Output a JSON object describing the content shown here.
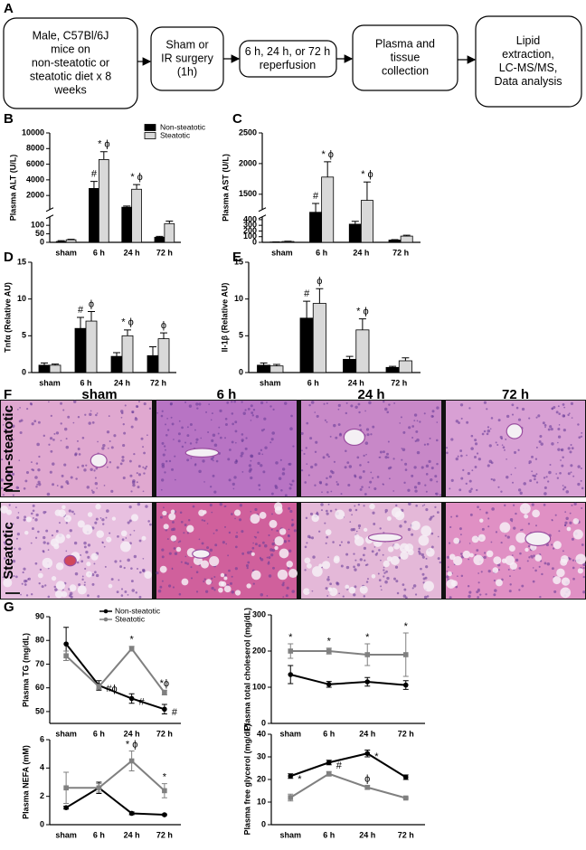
{
  "flow": {
    "panel": "A",
    "boxes": [
      {
        "lines": [
          "Male, C57Bl/6J",
          "mice on",
          "non-steatotic or",
          "steatotic diet x 8",
          "weeks"
        ]
      },
      {
        "lines": [
          "Sham or",
          "IR surgery",
          "(1h)"
        ]
      },
      {
        "lines": [
          "6 h, 24 h, or 72 h",
          "reperfusion"
        ]
      },
      {
        "lines": [
          "Plasma and",
          "tissue",
          "collection"
        ]
      },
      {
        "lines": [
          "Lipid",
          "extraction,",
          "LC-MS/MS,",
          "Data analysis"
        ]
      }
    ]
  },
  "chart_data": [
    {
      "type": "bar",
      "panel": "B",
      "ylabel": "Plasma ALT (U/L)",
      "categories": [
        "sham",
        "6 h",
        "24 h",
        "72 h"
      ],
      "ylim": [
        0,
        10000
      ],
      "y_segments": [
        [
          0,
          150
        ],
        [
          200,
          10000
        ]
      ],
      "yticks": [
        0,
        50,
        100,
        2000,
        4000,
        6000,
        8000,
        10000
      ],
      "legend": true,
      "series": [
        {
          "name": "Non-steatotic",
          "color": "#000000",
          "values": [
            5,
            2900,
            500,
            30
          ],
          "errors": [
            5,
            900,
            150,
            5
          ],
          "labels": [
            null,
            "#",
            null,
            null
          ]
        },
        {
          "name": "Steatotic",
          "color": "#d9d9d9",
          "values": [
            15,
            6600,
            2800,
            110
          ],
          "errors": [
            3,
            1000,
            600,
            15
          ],
          "labels": [
            null,
            "* ϕ",
            "* ϕ",
            null
          ]
        }
      ]
    },
    {
      "type": "bar",
      "panel": "C",
      "ylabel": "Plasma AST (U/L)",
      "categories": [
        "sham",
        "6 h",
        "24 h",
        "72 h"
      ],
      "ylim": [
        0,
        2500
      ],
      "y_segments": [
        [
          0,
          450
        ],
        [
          1250,
          2500
        ]
      ],
      "yticks": [
        0,
        100,
        200,
        300,
        400,
        1500,
        2000,
        2500
      ],
      "legend": false,
      "series": [
        {
          "name": "Non-steatotic",
          "color": "#000000",
          "values": [
            5,
            950,
            320,
            40
          ],
          "errors": [
            3,
            400,
            50,
            8
          ],
          "labels": [
            null,
            "#",
            null,
            null
          ]
        },
        {
          "name": "Steatotic",
          "color": "#d9d9d9",
          "values": [
            15,
            1780,
            1400,
            110
          ],
          "errors": [
            4,
            250,
            300,
            15
          ],
          "labels": [
            null,
            "* ϕ",
            "* ϕ",
            null
          ]
        }
      ]
    },
    {
      "type": "bar",
      "panel": "D",
      "ylabel": "Tnfα (Relative AU)",
      "categories": [
        "sham",
        "6 h",
        "24 h",
        "72 h"
      ],
      "ylim": [
        0,
        15
      ],
      "yticks": [
        0,
        5,
        10,
        15
      ],
      "legend": false,
      "series": [
        {
          "name": "Non-steatotic",
          "color": "#000000",
          "values": [
            1.0,
            6.0,
            2.2,
            2.3
          ],
          "errors": [
            0.3,
            1.5,
            0.5,
            1.2
          ],
          "labels": [
            null,
            "#",
            null,
            null
          ]
        },
        {
          "name": "Steatotic",
          "color": "#d9d9d9",
          "values": [
            1.0,
            7.0,
            5.0,
            4.6
          ],
          "errors": [
            0.15,
            1.3,
            0.8,
            0.8
          ],
          "labels": [
            null,
            "ϕ",
            "* ϕ",
            "ϕ"
          ]
        }
      ]
    },
    {
      "type": "bar",
      "panel": "E",
      "ylabel": "Il-1β (Relative AU)",
      "categories": [
        "sham",
        "6 h",
        "24 h",
        "72 h"
      ],
      "ylim": [
        0,
        15
      ],
      "yticks": [
        0,
        5,
        10,
        15
      ],
      "legend": false,
      "series": [
        {
          "name": "Non-steatotic",
          "color": "#000000",
          "values": [
            1.0,
            7.4,
            1.8,
            0.7
          ],
          "errors": [
            0.3,
            2.3,
            0.4,
            0.15
          ],
          "labels": [
            null,
            "#",
            null,
            null
          ]
        },
        {
          "name": "Steatotic",
          "color": "#d9d9d9",
          "values": [
            0.9,
            9.4,
            5.8,
            1.6
          ],
          "errors": [
            0.2,
            2.0,
            1.5,
            0.4
          ],
          "labels": [
            null,
            "ϕ",
            "* ϕ",
            null
          ]
        }
      ]
    },
    {
      "type": "line",
      "panel": "G",
      "ylabel": "Plasma TG (mg/dL)",
      "categories": [
        "sham",
        "6 h",
        "24 h",
        "72 h"
      ],
      "ylim": [
        45,
        90
      ],
      "yticks": [
        50,
        60,
        70,
        80,
        90
      ],
      "legend": true,
      "series": [
        {
          "name": "Non-steatotic",
          "color": "#000000",
          "values": [
            78.5,
            61,
            55.5,
            51
          ],
          "errors": [
            7,
            2,
            2,
            2
          ],
          "labels": [
            null,
            "#ϕ",
            "#",
            "#"
          ]
        },
        {
          "name": "Steatotic",
          "color": "#808080",
          "values": [
            73.5,
            60.5,
            76.5,
            58
          ],
          "errors": [
            2,
            1,
            1,
            1
          ],
          "labels": [
            null,
            null,
            "*",
            "*ϕ"
          ]
        }
      ]
    },
    {
      "type": "line",
      "ylabel": "Plasma total choleserol (mg/dL)",
      "categories": [
        "sham",
        "6 h",
        "24 h",
        "72 h"
      ],
      "ylim": [
        0,
        300
      ],
      "yticks": [
        0,
        100,
        200,
        300
      ],
      "legend": false,
      "series": [
        {
          "name": "Non-steatotic",
          "color": "#000000",
          "values": [
            135,
            108,
            115,
            106
          ],
          "errors": [
            25,
            8,
            12,
            12
          ],
          "labels": [
            null,
            null,
            null,
            null
          ]
        },
        {
          "name": "Steatotic",
          "color": "#808080",
          "values": [
            200,
            200,
            190,
            190
          ],
          "errors": [
            20,
            8,
            30,
            60
          ],
          "labels": [
            "*",
            "*",
            "*",
            "*"
          ]
        }
      ]
    },
    {
      "type": "line",
      "ylabel": "Plasma NEFA (mM)",
      "categories": [
        "sham",
        "6 h",
        "24 h",
        "72 h"
      ],
      "ylim": [
        0,
        6
      ],
      "yticks": [
        0,
        2,
        4,
        6
      ],
      "legend": false,
      "series": [
        {
          "name": "Non-steatotic",
          "color": "#000000",
          "values": [
            1.2,
            2.6,
            0.8,
            0.7
          ],
          "errors": [
            0.1,
            0.4,
            0.1,
            0.05
          ],
          "labels": [
            null,
            null,
            null,
            null
          ]
        },
        {
          "name": "Steatotic",
          "color": "#808080",
          "values": [
            2.6,
            2.6,
            4.5,
            2.4
          ],
          "errors": [
            1.1,
            0.3,
            0.7,
            0.5
          ],
          "labels": [
            null,
            null,
            "* ϕ",
            "*"
          ]
        }
      ]
    },
    {
      "type": "line",
      "ylabel": "Plasma free glycerol (mg/dL)",
      "categories": [
        "sham",
        "6 h",
        "24 h",
        "72 h"
      ],
      "ylim": [
        0,
        40
      ],
      "yticks": [
        0,
        10,
        20,
        30,
        40
      ],
      "legend": false,
      "series": [
        {
          "name": "Non-steatotic",
          "color": "#000000",
          "values": [
            21.5,
            27.5,
            31.5,
            21
          ],
          "errors": [
            1,
            1,
            1.5,
            1
          ],
          "labels": [
            "*",
            "#",
            "*",
            null
          ]
        },
        {
          "name": "Steatotic",
          "color": "#808080",
          "values": [
            12,
            22.5,
            16.5,
            11.8
          ],
          "errors": [
            1.5,
            1,
            0.8,
            0.3
          ],
          "labels": [
            null,
            null,
            "ϕ",
            null
          ]
        }
      ]
    }
  ],
  "histology": {
    "panel": "F",
    "columns": [
      "sham",
      "6 h",
      "24 h",
      "72 h"
    ],
    "rows": [
      "Non-steatotic",
      "Steatotic"
    ]
  }
}
